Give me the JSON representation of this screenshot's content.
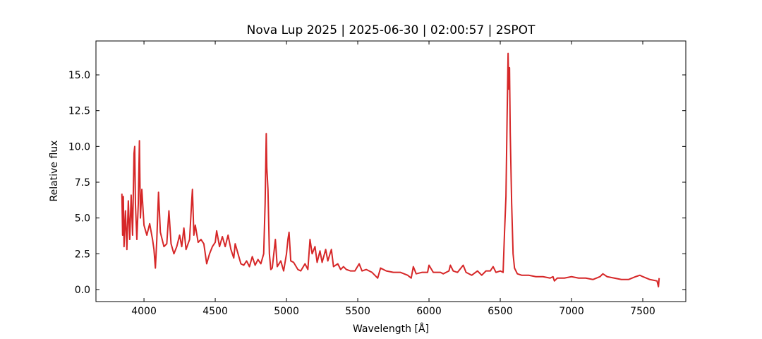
{
  "chart_data": {
    "type": "line",
    "title": "Nova Lup 2025 | 2025-06-30 | 02:00:57 | 2SPOT",
    "xlabel": "Wavelength [Å]",
    "ylabel": "Relative flux",
    "color": "#d62728",
    "xlim": [
      3663,
      7802
    ],
    "ylim": [
      -0.84,
      17.37
    ],
    "xticks": [
      4000,
      4500,
      5000,
      5500,
      6000,
      6500,
      7000,
      7500
    ],
    "yticks": [
      {
        "value": 0,
        "label": "0.0"
      },
      {
        "value": 2.5,
        "label": "2.5"
      },
      {
        "value": 5,
        "label": "5.0"
      },
      {
        "value": 7.5,
        "label": "7.5"
      },
      {
        "value": 10,
        "label": "10.0"
      },
      {
        "value": 12.5,
        "label": "12.5"
      },
      {
        "value": 15,
        "label": "15.0"
      }
    ],
    "x": [
      3845,
      3850,
      3855,
      3860,
      3870,
      3880,
      3890,
      3900,
      3910,
      3920,
      3930,
      3935,
      3940,
      3950,
      3960,
      3968,
      3975,
      3985,
      4000,
      4020,
      4040,
      4060,
      4070,
      4080,
      4090,
      4102,
      4115,
      4140,
      4160,
      4175,
      4190,
      4210,
      4230,
      4250,
      4265,
      4280,
      4295,
      4320,
      4335,
      4340,
      4350,
      4360,
      4380,
      4400,
      4420,
      4440,
      4460,
      4480,
      4500,
      4510,
      4530,
      4550,
      4570,
      4590,
      4610,
      4630,
      4640,
      4660,
      4680,
      4700,
      4720,
      4740,
      4760,
      4780,
      4800,
      4820,
      4840,
      4850,
      4858,
      4862,
      4870,
      4880,
      4890,
      4900,
      4922,
      4935,
      4960,
      4980,
      5000,
      5010,
      5018,
      5030,
      5050,
      5080,
      5100,
      5130,
      5150,
      5165,
      5180,
      5200,
      5215,
      5235,
      5250,
      5275,
      5290,
      5315,
      5330,
      5360,
      5380,
      5400,
      5420,
      5450,
      5480,
      5510,
      5530,
      5560,
      5600,
      5640,
      5660,
      5700,
      5750,
      5800,
      5850,
      5875,
      5890,
      5910,
      5950,
      5990,
      6000,
      6030,
      6080,
      6100,
      6140,
      6150,
      6170,
      6200,
      6240,
      6260,
      6300,
      6340,
      6370,
      6400,
      6430,
      6450,
      6470,
      6500,
      6520,
      6530,
      6540,
      6548,
      6555,
      6560,
      6565,
      6570,
      6580,
      6590,
      6600,
      6620,
      6650,
      6700,
      6750,
      6800,
      6850,
      6870,
      6880,
      6900,
      6950,
      7000,
      7050,
      7100,
      7150,
      7200,
      7220,
      7250,
      7300,
      7350,
      7400,
      7450,
      7480,
      7500,
      7550,
      7600,
      7610,
      7615
    ],
    "values": [
      6.7,
      3.8,
      6.5,
      3.0,
      5.5,
      2.8,
      6.2,
      3.5,
      6.6,
      3.8,
      9.5,
      10.0,
      6.0,
      3.5,
      6.0,
      10.4,
      5.0,
      7.0,
      4.5,
      3.8,
      4.6,
      3.5,
      2.8,
      1.5,
      3.5,
      6.8,
      4.0,
      3.0,
      3.2,
      5.5,
      3.2,
      2.5,
      3.0,
      3.8,
      3.0,
      4.3,
      2.8,
      3.5,
      6.2,
      7.0,
      3.8,
      4.5,
      3.3,
      3.5,
      3.2,
      1.8,
      2.5,
      3.0,
      3.3,
      4.1,
      3.0,
      3.7,
      3.0,
      3.8,
      2.8,
      2.2,
      3.2,
      2.5,
      1.8,
      1.7,
      2.0,
      1.6,
      2.3,
      1.7,
      2.1,
      1.8,
      2.5,
      6.0,
      10.9,
      8.5,
      7.0,
      2.5,
      1.4,
      1.5,
      3.5,
      1.6,
      2.0,
      1.3,
      2.5,
      3.5,
      4.0,
      2.0,
      1.9,
      1.4,
      1.3,
      1.8,
      1.4,
      3.5,
      2.5,
      3.0,
      1.9,
      2.7,
      1.9,
      2.8,
      2.0,
      2.8,
      1.6,
      1.8,
      1.4,
      1.6,
      1.4,
      1.3,
      1.3,
      1.8,
      1.3,
      1.4,
      1.2,
      0.8,
      1.5,
      1.3,
      1.2,
      1.2,
      1.0,
      0.8,
      1.6,
      1.1,
      1.2,
      1.2,
      1.7,
      1.2,
      1.2,
      1.1,
      1.3,
      1.7,
      1.3,
      1.2,
      1.7,
      1.2,
      1.0,
      1.3,
      1.0,
      1.3,
      1.3,
      1.6,
      1.2,
      1.3,
      1.2,
      4.0,
      6.5,
      12,
      16.5,
      14,
      15.5,
      11,
      6,
      2.5,
      1.5,
      1.1,
      1.0,
      1.0,
      0.9,
      0.9,
      0.8,
      0.9,
      0.6,
      0.8,
      0.8,
      0.9,
      0.8,
      0.8,
      0.7,
      0.9,
      1.1,
      0.9,
      0.8,
      0.7,
      0.7,
      0.9,
      1.0,
      0.9,
      0.7,
      0.6,
      0.2,
      0.8
    ]
  }
}
